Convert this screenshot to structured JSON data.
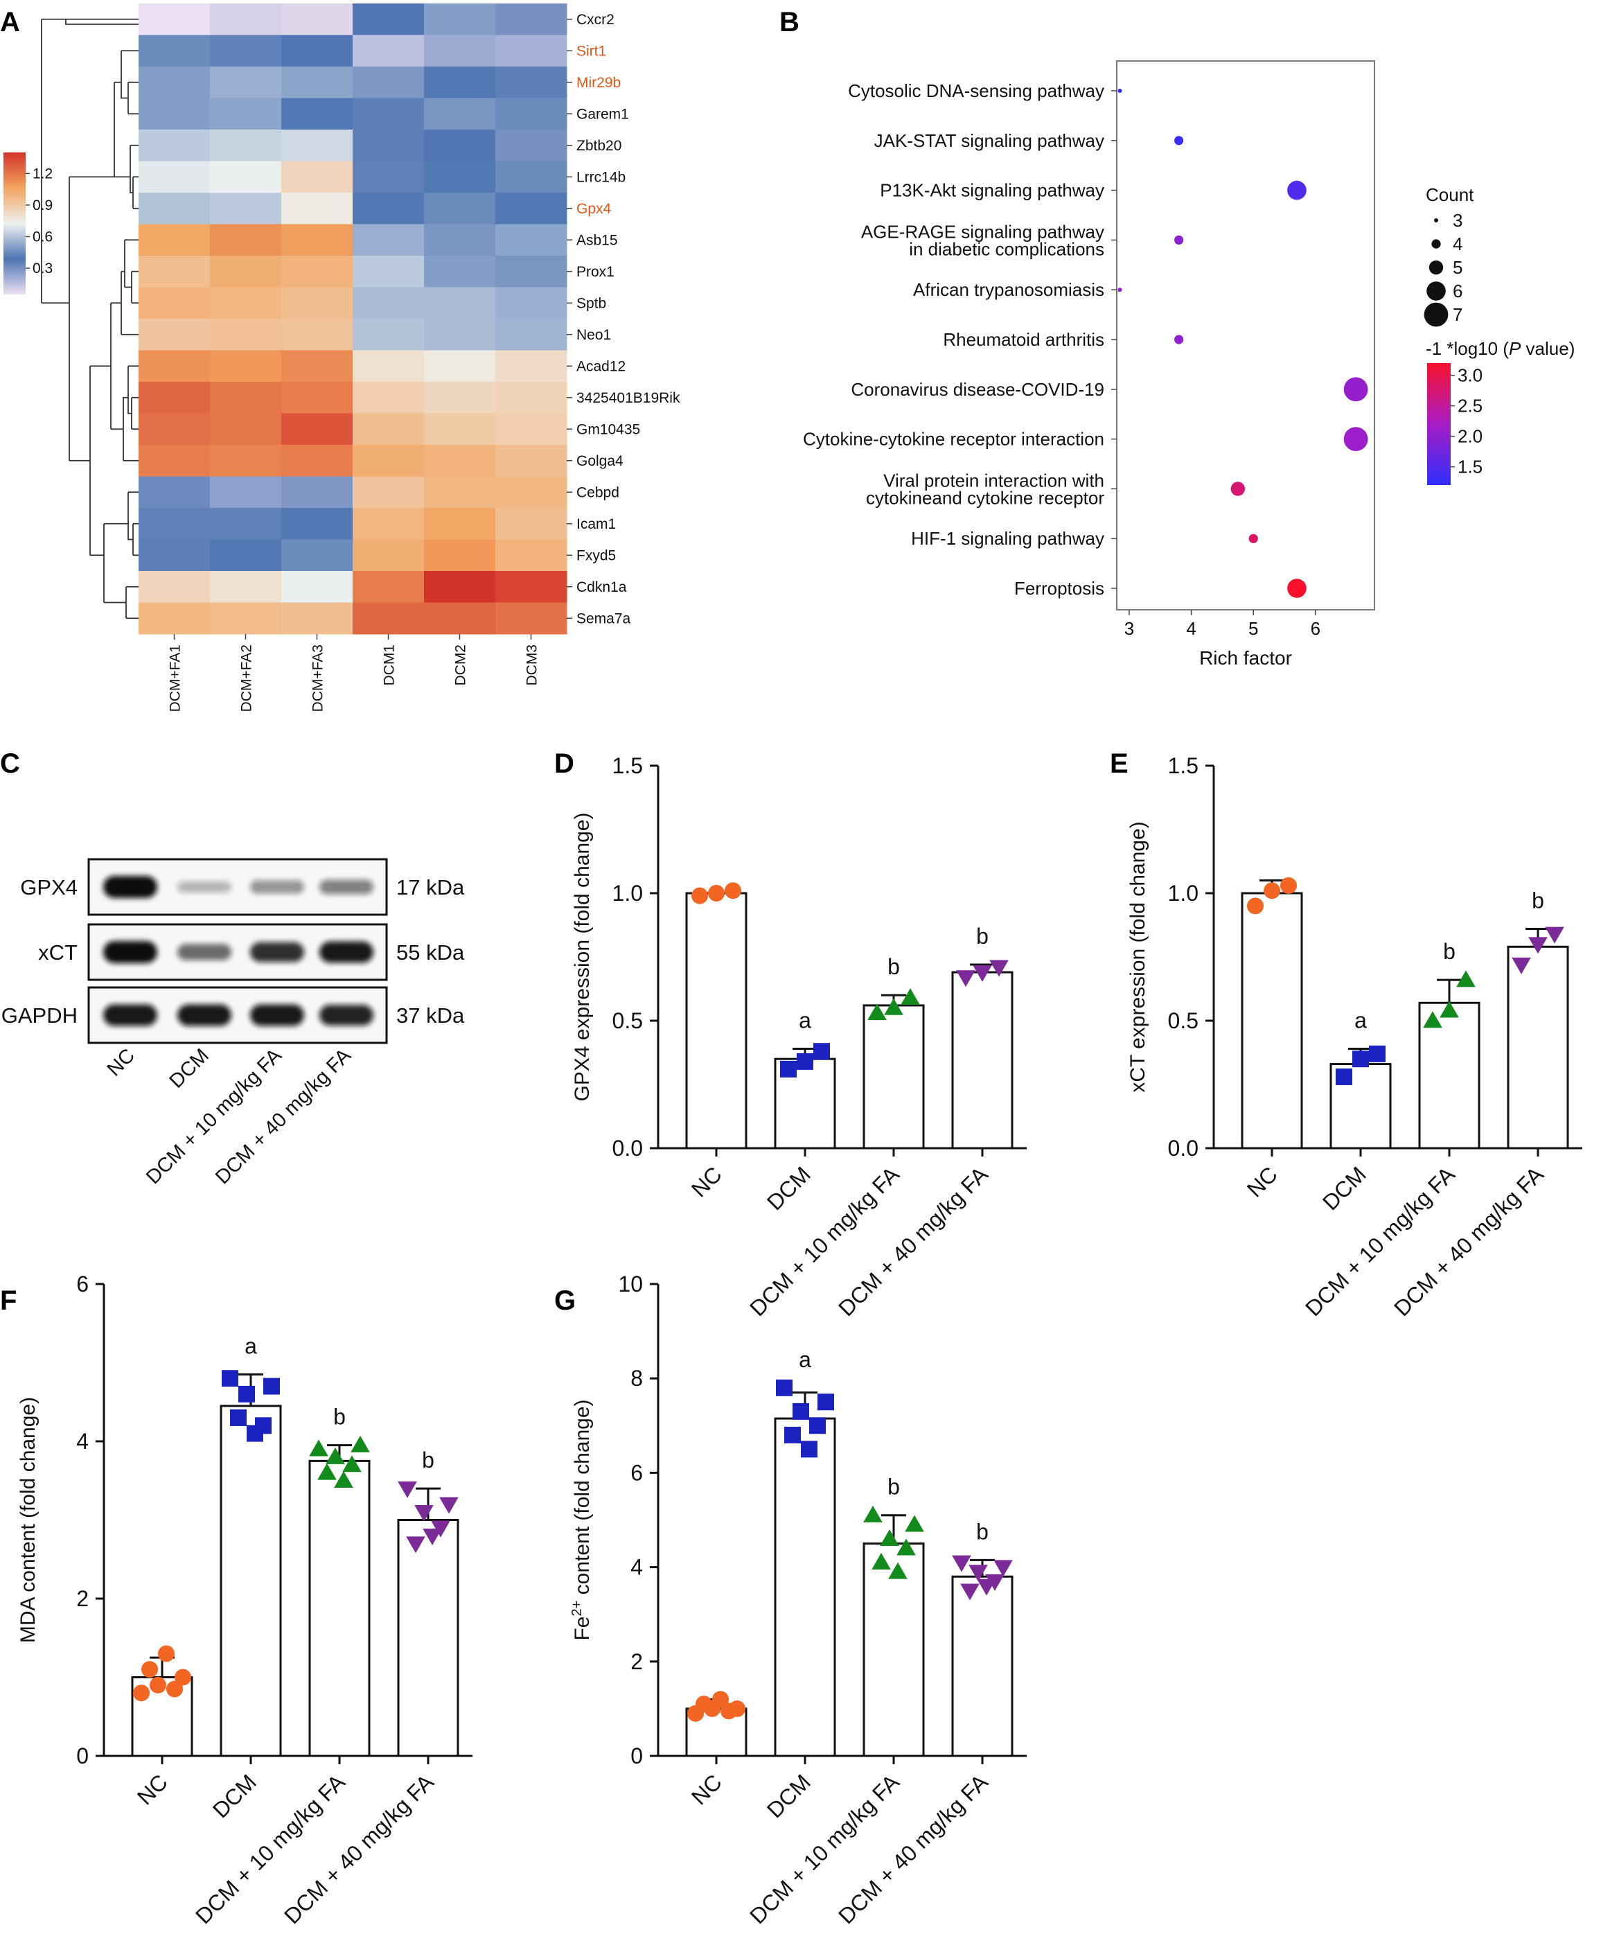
{
  "panel_letters": [
    "A",
    "B",
    "C",
    "D",
    "E",
    "F",
    "G"
  ],
  "chart_data": [
    {
      "panel": "A",
      "type": "heatmap",
      "columns": [
        "DCM+FA1",
        "DCM+FA2",
        "DCM+FA3",
        "DCM1",
        "DCM2",
        "DCM3"
      ],
      "rows": [
        "Cxcr2",
        "Sirt1",
        "Mir29b",
        "Garem1",
        "Zbtb20",
        "Lrrc14b",
        "Gpx4",
        "Asb15",
        "Prox1",
        "Sptb",
        "Neo1",
        "Acad12",
        "3425401B19Rik",
        "Gm10435",
        "Golga4",
        "Cebpd",
        "Icam1",
        "Fxyd5",
        "Cdkn1a",
        "Sema7a"
      ],
      "highlight_rows": [
        "Sirt1",
        "Mir29b",
        "Gpx4"
      ],
      "highlight_color": "#e0571a",
      "values": [
        [
          0.05,
          0.1,
          0.08,
          0.38,
          0.5,
          0.3
        ],
        [
          0.45,
          0.35,
          0.38,
          0.15,
          0.22,
          0.2
        ],
        [
          0.5,
          0.55,
          0.52,
          0.28,
          0.4,
          0.42
        ],
        [
          0.5,
          0.52,
          0.4,
          0.42,
          0.48,
          0.45
        ],
        [
          0.62,
          0.64,
          0.66,
          0.42,
          0.38,
          0.3
        ],
        [
          0.7,
          0.72,
          0.85,
          0.35,
          0.4,
          0.45
        ],
        [
          0.6,
          0.62,
          0.75,
          0.4,
          0.45,
          0.4
        ],
        [
          1.05,
          1.12,
          1.08,
          0.55,
          0.48,
          0.52
        ],
        [
          0.95,
          1.02,
          1.0,
          0.62,
          0.5,
          0.48
        ],
        [
          1.0,
          0.98,
          0.95,
          0.58,
          0.58,
          0.55
        ],
        [
          0.92,
          0.94,
          0.93,
          0.6,
          0.58,
          0.56
        ],
        [
          1.12,
          1.1,
          1.14,
          0.8,
          0.76,
          0.82
        ],
        [
          1.25,
          1.2,
          1.18,
          0.88,
          0.84,
          0.86
        ],
        [
          1.22,
          1.2,
          1.3,
          0.95,
          0.9,
          0.88
        ],
        [
          1.18,
          1.16,
          1.18,
          1.02,
          1.0,
          0.95
        ],
        [
          0.32,
          0.25,
          0.28,
          0.92,
          0.98,
          0.98
        ],
        [
          0.35,
          0.35,
          0.4,
          0.98,
          1.05,
          0.95
        ],
        [
          0.42,
          0.4,
          0.45,
          1.02,
          1.1,
          1.0
        ],
        [
          0.85,
          0.8,
          0.72,
          1.18,
          1.4,
          1.35
        ],
        [
          0.98,
          0.96,
          0.95,
          1.25,
          1.25,
          1.22
        ]
      ],
      "legend_ticks": [
        1.2,
        0.9,
        0.6,
        0.3
      ],
      "colorscale": [
        "#ece1f2",
        "#4d74b2",
        "#eef1f0",
        "#f2a460",
        "#d3342a"
      ]
    },
    {
      "panel": "B",
      "type": "scatter",
      "xlabel": "Rich factor",
      "xticks": [
        3,
        4,
        5,
        6
      ],
      "xlim": [
        2.8,
        6.95
      ],
      "pathways": [
        "Cytosolic DNA-sensing pathway",
        "JAK-STAT signaling pathway",
        "P13K-Akt signaling pathway",
        "AGE-RAGE signaling pathway|in diabetic complications",
        "African trypanosomiasis",
        "Rheumatoid arthritis",
        "Coronavirus disease-COVID-19",
        "Cytokine-cytokine receptor interaction",
        "Viral protein interaction with|cytokineand cytokine receptor",
        "HIF-1 signaling pathway",
        "Ferroptosis"
      ],
      "rich_factor": [
        2.85,
        3.8,
        5.7,
        3.8,
        2.85,
        3.8,
        6.65,
        6.65,
        4.75,
        5.0,
        5.7
      ],
      "count": [
        3,
        4,
        6,
        4,
        3,
        4,
        7,
        7,
        5,
        4,
        6
      ],
      "neg_log10_p": [
        1.2,
        1.3,
        1.45,
        1.95,
        2.0,
        2.0,
        2.05,
        2.1,
        2.75,
        2.85,
        3.2
      ],
      "size_legend_title": "Count",
      "size_legend": [
        3,
        4,
        5,
        6,
        7
      ],
      "color_legend_title_pre": "-1 *log10 (",
      "color_legend_title_italic": "P",
      "color_legend_title_post": " value)",
      "color_legend_ticks": [
        3.0,
        2.5,
        2.0,
        1.5
      ],
      "colorscale": [
        "#2f2ffc",
        "#a81cc5",
        "#f8102c"
      ]
    },
    {
      "panel": "C",
      "type": "western-blot",
      "bands": [
        {
          "protein": "GPX4",
          "size": "17 kDa",
          "intensity": [
            1.0,
            0.28,
            0.42,
            0.5
          ]
        },
        {
          "protein": "xCT",
          "size": "55 kDa",
          "intensity": [
            1.0,
            0.6,
            0.85,
            0.95
          ]
        },
        {
          "protein": "GAPDH",
          "size": "37 kDa",
          "intensity": [
            0.95,
            0.95,
            0.95,
            0.9
          ]
        }
      ],
      "lanes": [
        "NC",
        "DCM",
        "DCM + 10 mg/kg FA",
        "DCM + 40 mg/kg FA"
      ]
    },
    {
      "panel": "D",
      "type": "bar",
      "ylabel": "GPX4 expression (fold change)",
      "categories": [
        "NC",
        "DCM",
        "DCM + 10 mg/kg FA",
        "DCM + 40 mg/kg FA"
      ],
      "values": [
        1.0,
        0.35,
        0.56,
        0.69
      ],
      "error": [
        0.0,
        0.04,
        0.04,
        0.03
      ],
      "points": [
        [
          0.99,
          1.0,
          1.01
        ],
        [
          0.31,
          0.34,
          0.38
        ],
        [
          0.53,
          0.55,
          0.59
        ],
        [
          0.67,
          0.69,
          0.71
        ]
      ],
      "letters": [
        "",
        "a",
        "b",
        "b"
      ],
      "ylim": [
        0,
        1.5
      ],
      "yticks": [
        0.0,
        0.5,
        1.0,
        1.5
      ],
      "tick_decimals": 1
    },
    {
      "panel": "E",
      "type": "bar",
      "ylabel": "xCT expression (fold change)",
      "categories": [
        "NC",
        "DCM",
        "DCM + 10 mg/kg FA",
        "DCM + 40 mg/kg FA"
      ],
      "values": [
        1.0,
        0.33,
        0.57,
        0.79
      ],
      "error": [
        0.05,
        0.06,
        0.09,
        0.07
      ],
      "points": [
        [
          0.95,
          1.01,
          1.03
        ],
        [
          0.28,
          0.35,
          0.37
        ],
        [
          0.5,
          0.54,
          0.66
        ],
        [
          0.72,
          0.8,
          0.84
        ]
      ],
      "letters": [
        "",
        "a",
        "b",
        "b"
      ],
      "ylim": [
        0,
        1.5
      ],
      "yticks": [
        0.0,
        0.5,
        1.0,
        1.5
      ],
      "tick_decimals": 1
    },
    {
      "panel": "F",
      "type": "bar",
      "ylabel": "MDA content (fold change)",
      "categories": [
        "NC",
        "DCM",
        "DCM + 10 mg/kg FA",
        "DCM + 40 mg/kg FA"
      ],
      "values": [
        1.0,
        4.45,
        3.75,
        3.0
      ],
      "error": [
        0.25,
        0.4,
        0.2,
        0.4
      ],
      "points": [
        [
          0.8,
          1.1,
          0.9,
          1.3,
          0.85,
          1.0
        ],
        [
          4.8,
          4.3,
          4.6,
          4.1,
          4.2,
          4.7
        ],
        [
          3.9,
          3.6,
          3.8,
          3.5,
          3.7,
          3.95
        ],
        [
          3.4,
          2.7,
          3.1,
          2.8,
          2.9,
          3.2
        ]
      ],
      "letters": [
        "",
        "a",
        "b",
        "b"
      ],
      "ylim": [
        0,
        6
      ],
      "yticks": [
        0,
        2,
        4,
        6
      ],
      "tick_decimals": 0
    },
    {
      "panel": "G",
      "type": "bar",
      "ylabel_pre": "Fe",
      "ylabel_sup": "2+",
      "ylabel_post": " content (fold change)",
      "categories": [
        "NC",
        "DCM",
        "DCM + 10 mg/kg FA",
        "DCM + 40 mg/kg FA"
      ],
      "values": [
        1.0,
        7.15,
        4.5,
        3.8
      ],
      "error": [
        0.2,
        0.55,
        0.6,
        0.35
      ],
      "points": [
        [
          0.9,
          1.1,
          1.0,
          1.2,
          0.95,
          1.0
        ],
        [
          7.8,
          6.8,
          7.3,
          6.5,
          7.0,
          7.5
        ],
        [
          5.1,
          4.1,
          4.6,
          3.9,
          4.4,
          4.9
        ],
        [
          4.1,
          3.5,
          3.9,
          3.6,
          3.7,
          4.0
        ]
      ],
      "letters": [
        "",
        "a",
        "b",
        "b"
      ],
      "ylim": [
        0,
        10
      ],
      "yticks": [
        0,
        2,
        4,
        6,
        8,
        10
      ],
      "tick_decimals": 0
    }
  ],
  "group_colors": [
    "#f26522",
    "#1a23c0",
    "#138a1c",
    "#7d2a99"
  ],
  "group_markers": [
    "circle",
    "square",
    "triangle-up",
    "triangle-down"
  ]
}
